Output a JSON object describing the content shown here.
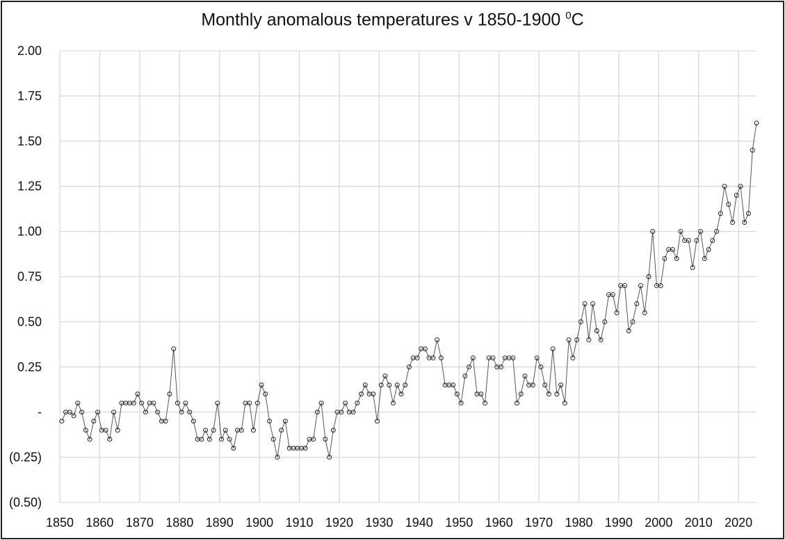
{
  "chart_data": {
    "type": "line",
    "title": "Monthly anomalous temperatures v 1850-1900",
    "title_unit_sup": "0",
    "title_unit": "C",
    "xlabel": "",
    "ylabel": "",
    "xlim": [
      1850,
      2024.5
    ],
    "ylim": [
      -0.5,
      2.0
    ],
    "x_ticks": [
      "1850",
      "1860",
      "1870",
      "1880",
      "1890",
      "1900",
      "1910",
      "1920",
      "1930",
      "1940",
      "1950",
      "1960",
      "1970",
      "1980",
      "1990",
      "2000",
      "2010",
      "2020"
    ],
    "y_ticks": [
      {
        "value": 2.0,
        "label": "2.00"
      },
      {
        "value": 1.75,
        "label": "1.75"
      },
      {
        "value": 1.5,
        "label": "1.50"
      },
      {
        "value": 1.25,
        "label": "1.25"
      },
      {
        "value": 1.0,
        "label": "1.00"
      },
      {
        "value": 0.75,
        "label": "0.75"
      },
      {
        "value": 0.5,
        "label": "0.50"
      },
      {
        "value": 0.25,
        "label": "0.25"
      },
      {
        "value": 0,
        "label": "-"
      },
      {
        "value": -0.25,
        "label": "(0.25)"
      },
      {
        "value": -0.5,
        "label": "(0.50)"
      }
    ],
    "grid": true,
    "legend": "none",
    "marker": "open-circle",
    "line_color": "#555555",
    "marker_color": "#111111",
    "grid_color": "#d9d9d9",
    "series": [
      {
        "start_year": 1850,
        "values": [
          -0.05,
          0.0,
          0.0,
          -0.02,
          0.05,
          0.0,
          -0.1,
          -0.15,
          -0.05,
          0.0,
          -0.1,
          -0.1,
          -0.15,
          0.0,
          -0.1,
          0.05,
          0.05,
          0.05,
          0.05,
          0.1,
          0.05,
          0.0,
          0.05,
          0.05,
          0.0,
          -0.05,
          -0.05,
          0.1,
          0.35,
          0.05,
          0.0,
          0.05,
          0.0,
          -0.05,
          -0.15,
          -0.15,
          -0.1,
          -0.15,
          -0.1,
          0.05,
          -0.15,
          -0.1,
          -0.15,
          -0.2,
          -0.1,
          -0.1,
          0.05,
          0.05,
          -0.1,
          0.05,
          0.15,
          0.1,
          -0.05,
          -0.15,
          -0.25,
          -0.1,
          -0.05,
          -0.2,
          -0.2,
          -0.2,
          -0.2,
          -0.2,
          -0.15,
          -0.15,
          0.0,
          0.05,
          -0.15,
          -0.25,
          -0.1,
          0.0,
          0.0,
          0.05,
          0.0,
          0.0,
          0.05,
          0.1,
          0.15,
          0.1,
          0.1,
          -0.05,
          0.15,
          0.2,
          0.15,
          0.05,
          0.15,
          0.1,
          0.15,
          0.25,
          0.3,
          0.3,
          0.35,
          0.35,
          0.3,
          0.3,
          0.4,
          0.3,
          0.15,
          0.15,
          0.15,
          0.1,
          0.05,
          0.2,
          0.25,
          0.3,
          0.1,
          0.1,
          0.05,
          0.3,
          0.3,
          0.25,
          0.25,
          0.3,
          0.3,
          0.3,
          0.05,
          0.1,
          0.2,
          0.15,
          0.15,
          0.3,
          0.25,
          0.15,
          0.1,
          0.35,
          0.1,
          0.15,
          0.05,
          0.4,
          0.3,
          0.4,
          0.5,
          0.6,
          0.4,
          0.6,
          0.45,
          0.4,
          0.5,
          0.65,
          0.65,
          0.55,
          0.7,
          0.7,
          0.45,
          0.5,
          0.6,
          0.7,
          0.55,
          0.75,
          1.0,
          0.7,
          0.7,
          0.85,
          0.9,
          0.9,
          0.85,
          1.0,
          0.95,
          0.95,
          0.8,
          0.95,
          1.0,
          0.85,
          0.9,
          0.95,
          1.0,
          1.1,
          1.25,
          1.15,
          1.05,
          1.2,
          1.25,
          1.05,
          1.1,
          1.45,
          1.6
        ]
      }
    ]
  }
}
